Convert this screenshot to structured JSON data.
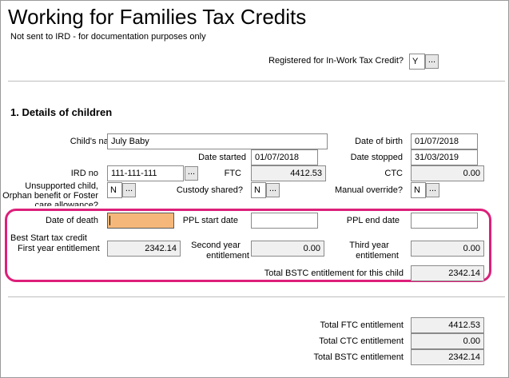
{
  "title": "Working for Families Tax Credits",
  "subtitle": "Not sent to IRD - for documentation purposes only",
  "registered": {
    "label": "Registered for In-Work Tax Credit?",
    "value": "Y",
    "btn": "..."
  },
  "section_title": "1. Details of children",
  "child": {
    "name_label": "Child's name",
    "name_value": "July Baby",
    "dob_label": "Date of birth",
    "dob_value": "01/07/2018",
    "date_started_label": "Date started",
    "date_started_value": "01/07/2018",
    "date_stopped_label": "Date stopped",
    "date_stopped_value": "31/03/2019",
    "ird_label": "IRD no",
    "ird_value": "111-111-111",
    "ird_btn": "...",
    "ftc_label": "FTC",
    "ftc_value": "4412.53",
    "ctc_label": "CTC",
    "ctc_value": "0.00",
    "unsupported_label_1": "Unsupported child,",
    "unsupported_label_2": "Orphan benefit or Foster",
    "unsupported_label_3": "care allowance?",
    "unsupported_value": "N",
    "unsupported_btn": "...",
    "custody_label": "Custody shared?",
    "custody_value": "N",
    "custody_btn": "...",
    "override_label": "Manual override?",
    "override_value": "N",
    "override_btn": "..."
  },
  "bstc": {
    "death_label": "Date of death",
    "death_value": "",
    "ppl_start_label": "PPL start date",
    "ppl_start_value": "",
    "ppl_end_label": "PPL end date",
    "ppl_end_value": "",
    "bstc_heading": "Best Start tax credit",
    "first_label": "First year entitlement",
    "first_value": "2342.14",
    "second_label_1": "Second year",
    "second_label_2": "entitlement",
    "second_value": "0.00",
    "third_label_1": "Third year",
    "third_label_2": "entitlement",
    "third_value": "0.00",
    "total_child_label": "Total BSTC entitlement for this child",
    "total_child_value": "2342.14"
  },
  "totals": {
    "ftc_label": "Total FTC entitlement",
    "ftc_value": "4412.53",
    "ctc_label": "Total CTC entitlement",
    "ctc_value": "0.00",
    "bstc_label": "Total BSTC entitlement",
    "bstc_value": "2342.14"
  },
  "colors": {
    "highlight": "#dd1f7a",
    "focus_field": "#f6b87a"
  }
}
